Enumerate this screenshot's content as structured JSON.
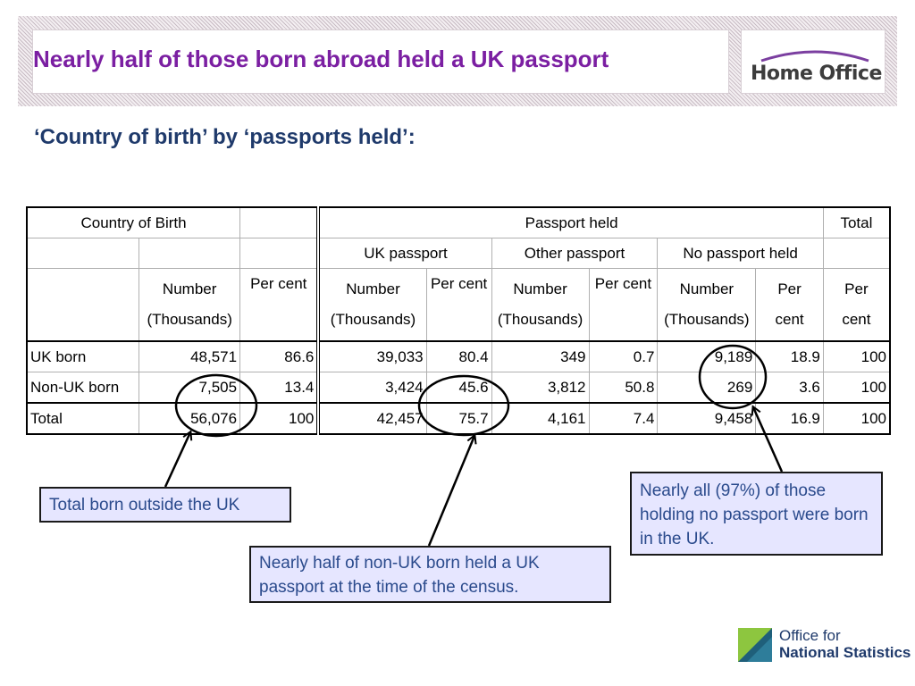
{
  "header": {
    "title": "Nearly half of those born abroad held a UK passport",
    "logo_text": "Home Office"
  },
  "subtitle": "‘Country of birth’ by ‘passports held’:",
  "table": {
    "h_country": "Country of Birth",
    "h_passport_held": "Passport held",
    "h_total": "Total",
    "h_uk_passport": "UK passport",
    "h_other_passport": "Other passport",
    "h_no_passport": "No passport held",
    "h_number": "Number",
    "h_thousands": "(Thousands)",
    "h_per_cent": "Per cent",
    "h_per": "Per",
    "h_cent": "cent",
    "rows": [
      {
        "label": "UK born",
        "cells": [
          "48,571",
          "86.6",
          "39,033",
          "80.4",
          "349",
          "0.7",
          "9,189",
          "18.9",
          "100"
        ]
      },
      {
        "label": "Non-UK born",
        "cells": [
          "7,505",
          "13.4",
          "3,424",
          "45.6",
          "3,812",
          "50.8",
          "269",
          "3.6",
          "100"
        ]
      },
      {
        "label": "Total",
        "cells": [
          "56,076",
          "100",
          "42,457",
          "75.7",
          "4,161",
          "7.4",
          "9,458",
          "16.9",
          "100"
        ]
      }
    ]
  },
  "notes": {
    "note1": "Total born outside the UK",
    "note2": "Nearly half of non-UK born held a UK passport at the time of the census.",
    "note3": "Nearly all (97%) of those holding no passport were born in the UK."
  },
  "footer": {
    "ons_line1": "Office for",
    "ons_line2": "National Statistics"
  },
  "colors": {
    "title": "#7b1fa2",
    "subtitle": "#1f3a6b",
    "note_bg": "#e6e6ff",
    "note_text": "#2a4a8c"
  },
  "icons": [
    "home-office-logo",
    "ons-logo-icon"
  ]
}
